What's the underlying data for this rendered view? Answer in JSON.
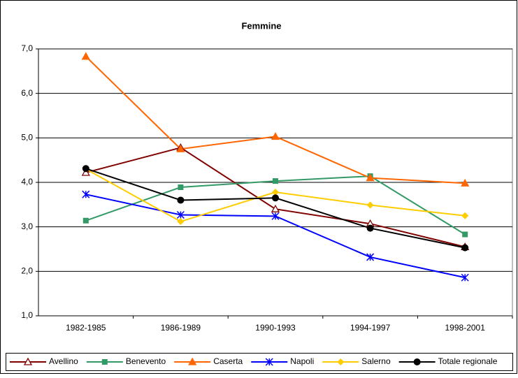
{
  "chart_data": {
    "type": "line",
    "title": "Femmine",
    "categories": [
      "1982-1985",
      "1986-1989",
      "1990-1993",
      "1994-1997",
      "1998-2001"
    ],
    "ylim": [
      1,
      7
    ],
    "yticks": [
      {
        "value": 1,
        "label": "1,0"
      },
      {
        "value": 2,
        "label": "2,0"
      },
      {
        "value": 3,
        "label": "3,0"
      },
      {
        "value": 4,
        "label": "4,0"
      },
      {
        "value": 5,
        "label": "5,0"
      },
      {
        "value": 6,
        "label": "6,0"
      },
      {
        "value": 7,
        "label": "7,0"
      }
    ],
    "grid": true,
    "legend": "bottom",
    "series": [
      {
        "name": "Avellino",
        "color": "#800000",
        "marker": "triangle-open",
        "values": [
          4.22,
          4.78,
          3.4,
          3.07,
          2.55
        ]
      },
      {
        "name": "Benevento",
        "color": "#339966",
        "marker": "square",
        "values": [
          3.14,
          3.89,
          4.03,
          4.14,
          2.83
        ]
      },
      {
        "name": "Caserta",
        "color": "#FF6600",
        "marker": "triangle",
        "values": [
          6.83,
          4.75,
          5.03,
          4.1,
          3.98
        ]
      },
      {
        "name": "Napoli",
        "color": "#0000FF",
        "marker": "asterisk",
        "values": [
          3.73,
          3.27,
          3.24,
          2.32,
          1.86
        ]
      },
      {
        "name": "Salerno",
        "color": "#FFCC00",
        "marker": "diamond",
        "values": [
          4.3,
          3.12,
          3.78,
          3.49,
          3.25
        ]
      },
      {
        "name": "Totale regionale",
        "color": "#000000",
        "marker": "circle",
        "values": [
          4.31,
          3.6,
          3.65,
          2.97,
          2.53
        ]
      }
    ]
  }
}
